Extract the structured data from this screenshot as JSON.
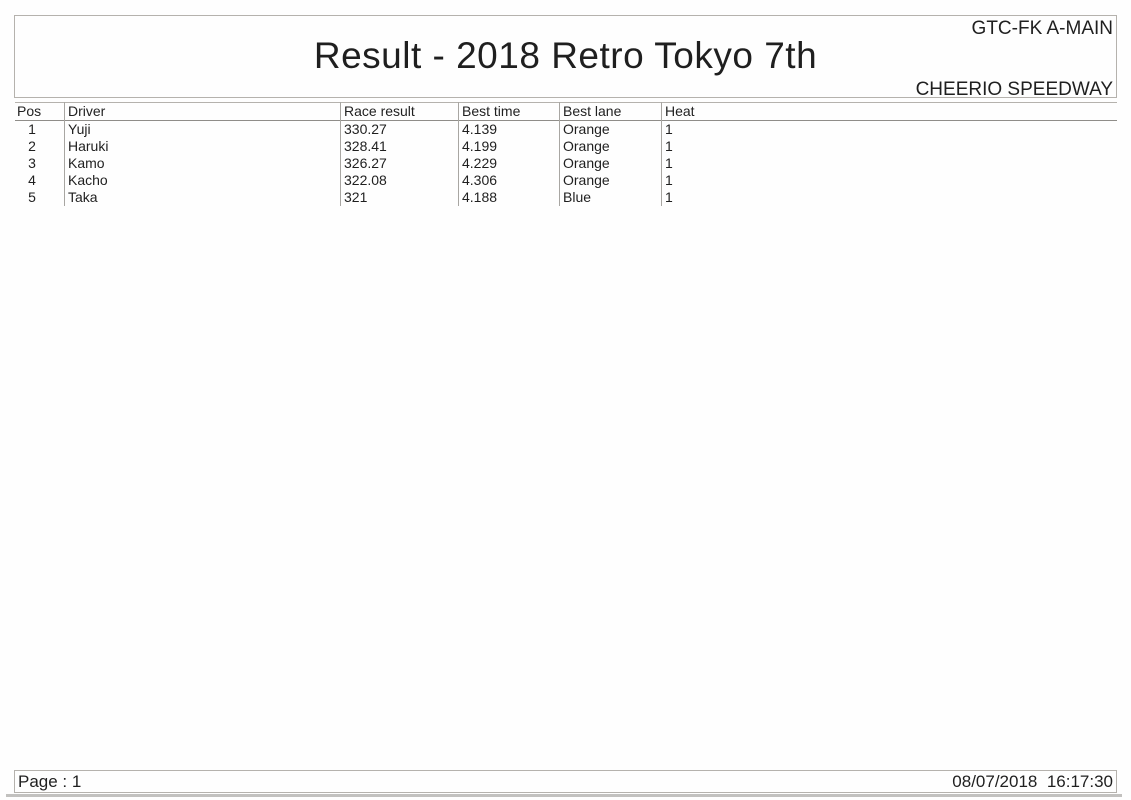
{
  "header": {
    "category": "GTC-FK A-MAIN",
    "title": "Result - 2018 Retro Tokyo 7th",
    "venue": "CHEERIO SPEEDWAY"
  },
  "table": {
    "columns": [
      "Pos",
      "Driver",
      "Race result",
      "Best time",
      "Best lane",
      "Heat"
    ],
    "rows": [
      [
        "1",
        "Yuji",
        "330.27",
        "4.139",
        "Orange",
        "1"
      ],
      [
        "2",
        "Haruki",
        "328.41",
        "4.199",
        "Orange",
        "1"
      ],
      [
        "3",
        "Kamo",
        "326.27",
        "4.229",
        "Orange",
        "1"
      ],
      [
        "4",
        "Kacho",
        "322.08",
        "4.306",
        "Orange",
        "1"
      ],
      [
        "5",
        "Taka",
        "321",
        "4.188",
        "Blue",
        "1"
      ]
    ]
  },
  "footer": {
    "page_label": "Page : 1",
    "datetime": "08/07/2018  16:17:30"
  },
  "colors": {
    "text": "#1f1f1f",
    "background": "#fefefe",
    "border_light": "#b5b2ad",
    "border_mid": "#a8a6a2",
    "border_dark": "#8f8d89"
  }
}
